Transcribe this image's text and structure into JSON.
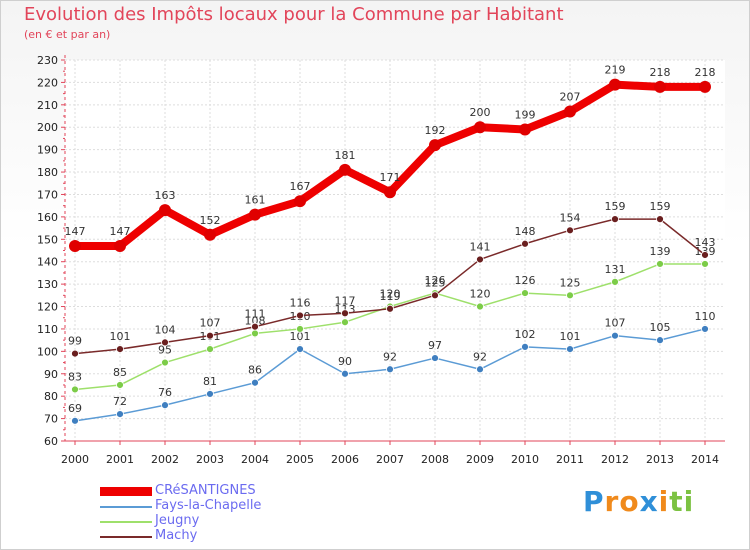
{
  "chart_data": {
    "type": "line",
    "title": "Evolution des Impôts locaux pour la Commune par Habitant",
    "subtitle": "(en € et par an)",
    "x": [
      "2000",
      "2001",
      "2002",
      "2003",
      "2004",
      "2005",
      "2006",
      "2007",
      "2008",
      "2009",
      "2010",
      "2011",
      "2012",
      "2013",
      "2014"
    ],
    "ylim": [
      60,
      230
    ],
    "yticks": [
      60,
      70,
      80,
      90,
      100,
      110,
      120,
      130,
      140,
      150,
      160,
      170,
      180,
      190,
      200,
      210,
      220,
      230
    ],
    "series": [
      {
        "name": "Fays-la-Chapelle",
        "color": "#5b9bd5",
        "marker": "#3f7fc0",
        "values": [
          69,
          72,
          76,
          81,
          86,
          101,
          90,
          92,
          97,
          92,
          102,
          101,
          107,
          105,
          110
        ]
      },
      {
        "name": "Jeugny",
        "color": "#9ee06b",
        "marker": "#7ccc48",
        "values": [
          83,
          85,
          95,
          101,
          108,
          110,
          113,
          120,
          126,
          120,
          126,
          125,
          131,
          139,
          139
        ]
      },
      {
        "name": "Machy",
        "color": "#7a2a2a",
        "marker": "#6a1f1f",
        "values": [
          99,
          101,
          104,
          107,
          111,
          116,
          117,
          119,
          125,
          141,
          148,
          154,
          159,
          159,
          143
        ]
      },
      {
        "name": "CRéSANTIGNES",
        "color": "#ee0000",
        "marker": "#e00000",
        "values": [
          147,
          147,
          163,
          152,
          161,
          167,
          181,
          171,
          192,
          200,
          199,
          207,
          219,
          218,
          218
        ]
      }
    ],
    "legend_order": [
      "CRéSANTIGNES",
      "Fays-la-Chapelle",
      "Jeugny",
      "Machy"
    ]
  },
  "logo": {
    "text": "Proxiti",
    "letters": [
      "P",
      "r",
      "o",
      "x",
      "i",
      "t",
      "i"
    ],
    "colors": [
      "#2f8fd8",
      "#f08a1c",
      "#f08a1c",
      "#2f8fd8",
      "#f08a1c",
      "#7cc242",
      "#7cc242"
    ]
  }
}
